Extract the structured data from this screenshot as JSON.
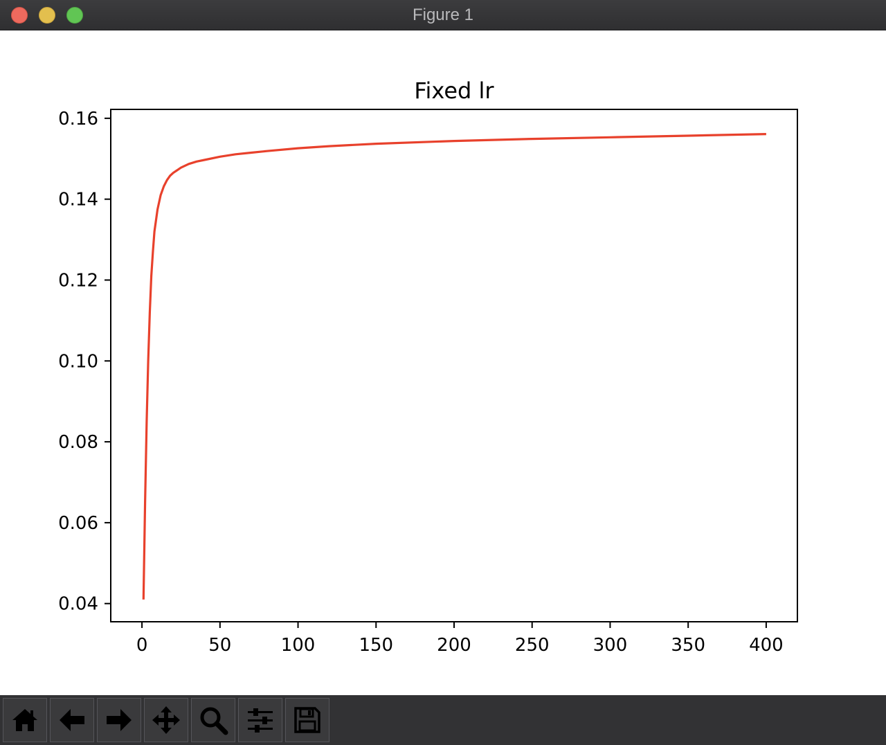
{
  "window": {
    "title": "Figure 1"
  },
  "toolbar": {
    "buttons": [
      {
        "name": "home-button",
        "icon": "home-icon"
      },
      {
        "name": "back-button",
        "icon": "arrow-left-icon"
      },
      {
        "name": "forward-button",
        "icon": "arrow-right-icon"
      },
      {
        "name": "pan-button",
        "icon": "move-icon"
      },
      {
        "name": "zoom-button",
        "icon": "search-icon"
      },
      {
        "name": "configure-subplots-button",
        "icon": "sliders-icon"
      },
      {
        "name": "save-button",
        "icon": "save-icon"
      }
    ]
  },
  "colors": {
    "line": "#e8412c",
    "axes": "#000000"
  },
  "chart_data": {
    "type": "line",
    "title": "Fixed lr",
    "xlabel": "",
    "ylabel": "",
    "xlim": [
      -20,
      420
    ],
    "ylim": [
      0.0355,
      0.1622
    ],
    "xticks": [
      0,
      50,
      100,
      150,
      200,
      250,
      300,
      350,
      400
    ],
    "yticks": [
      0.04,
      0.06,
      0.08,
      0.1,
      0.12,
      0.14,
      0.16
    ],
    "ytick_labels": [
      "0.04",
      "0.06",
      "0.08",
      "0.10",
      "0.12",
      "0.14",
      "0.16"
    ],
    "grid": false,
    "series": [
      {
        "x": [
          1,
          2,
          3,
          4,
          5,
          6,
          7,
          8,
          10,
          12,
          14,
          16,
          18,
          20,
          25,
          30,
          35,
          40,
          50,
          60,
          70,
          80,
          100,
          120,
          150,
          200,
          250,
          300,
          350,
          400
        ],
        "values": [
          0.041,
          0.065,
          0.085,
          0.1,
          0.112,
          0.121,
          0.127,
          0.132,
          0.1375,
          0.141,
          0.1432,
          0.1447,
          0.1458,
          0.1465,
          0.1478,
          0.1487,
          0.1493,
          0.1497,
          0.1505,
          0.1511,
          0.1515,
          0.1519,
          0.1526,
          0.1531,
          0.1537,
          0.1544,
          0.1549,
          0.1553,
          0.1557,
          0.1561
        ]
      }
    ]
  }
}
